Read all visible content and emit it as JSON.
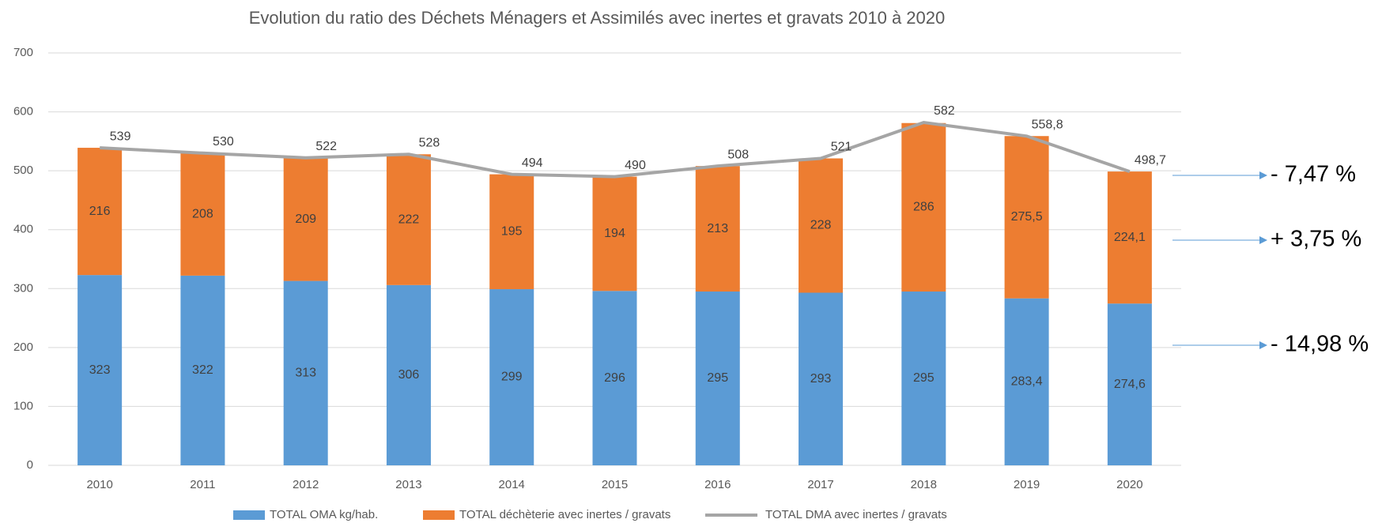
{
  "chart_data": {
    "type": "bar",
    "title": "Evolution du ratio des Déchets Ménagers et Assimilés  avec inertes et gravats 2010 à 2020",
    "categories": [
      "2010",
      "2011",
      "2012",
      "2013",
      "2014",
      "2015",
      "2016",
      "2017",
      "2018",
      "2019",
      "2020"
    ],
    "stacked": true,
    "series": [
      {
        "name": "TOTAL OMA kg/hab.",
        "color": "#5b9bd5",
        "type": "bar",
        "values": [
          323,
          322,
          313,
          306,
          299,
          296,
          295,
          293,
          295,
          283.4,
          274.6
        ],
        "value_labels": [
          "323",
          "322",
          "313",
          "306",
          "299",
          "296",
          "295",
          "293",
          "295",
          "283,4",
          "274,6"
        ]
      },
      {
        "name": "TOTAL déchèterie avec inertes / gravats",
        "color": "#ed7d31",
        "type": "bar",
        "values": [
          216,
          208,
          209,
          222,
          195,
          194,
          213,
          228,
          286,
          275.5,
          224.1
        ],
        "value_labels": [
          "216",
          "208",
          "209",
          "222",
          "195",
          "194",
          "213",
          "228",
          "286",
          "275,5",
          "224,1"
        ]
      },
      {
        "name": "TOTAL DMA avec inertes / gravats",
        "color": "#a5a5a5",
        "type": "line",
        "values": [
          539,
          530,
          522,
          528,
          494,
          490,
          508,
          521,
          582,
          558.8,
          498.7
        ],
        "value_labels": [
          "539",
          "530",
          "522",
          "528",
          "494",
          "490",
          "508",
          "521",
          "582",
          "558,8",
          "498,7"
        ]
      }
    ],
    "ylim": [
      0,
      700
    ],
    "yticks": [
      0,
      100,
      200,
      300,
      400,
      500,
      600,
      700
    ],
    "grid": true,
    "annotations": [
      "- 7,47 %",
      "+ 3,75 %",
      "- 14,98 %"
    ]
  }
}
